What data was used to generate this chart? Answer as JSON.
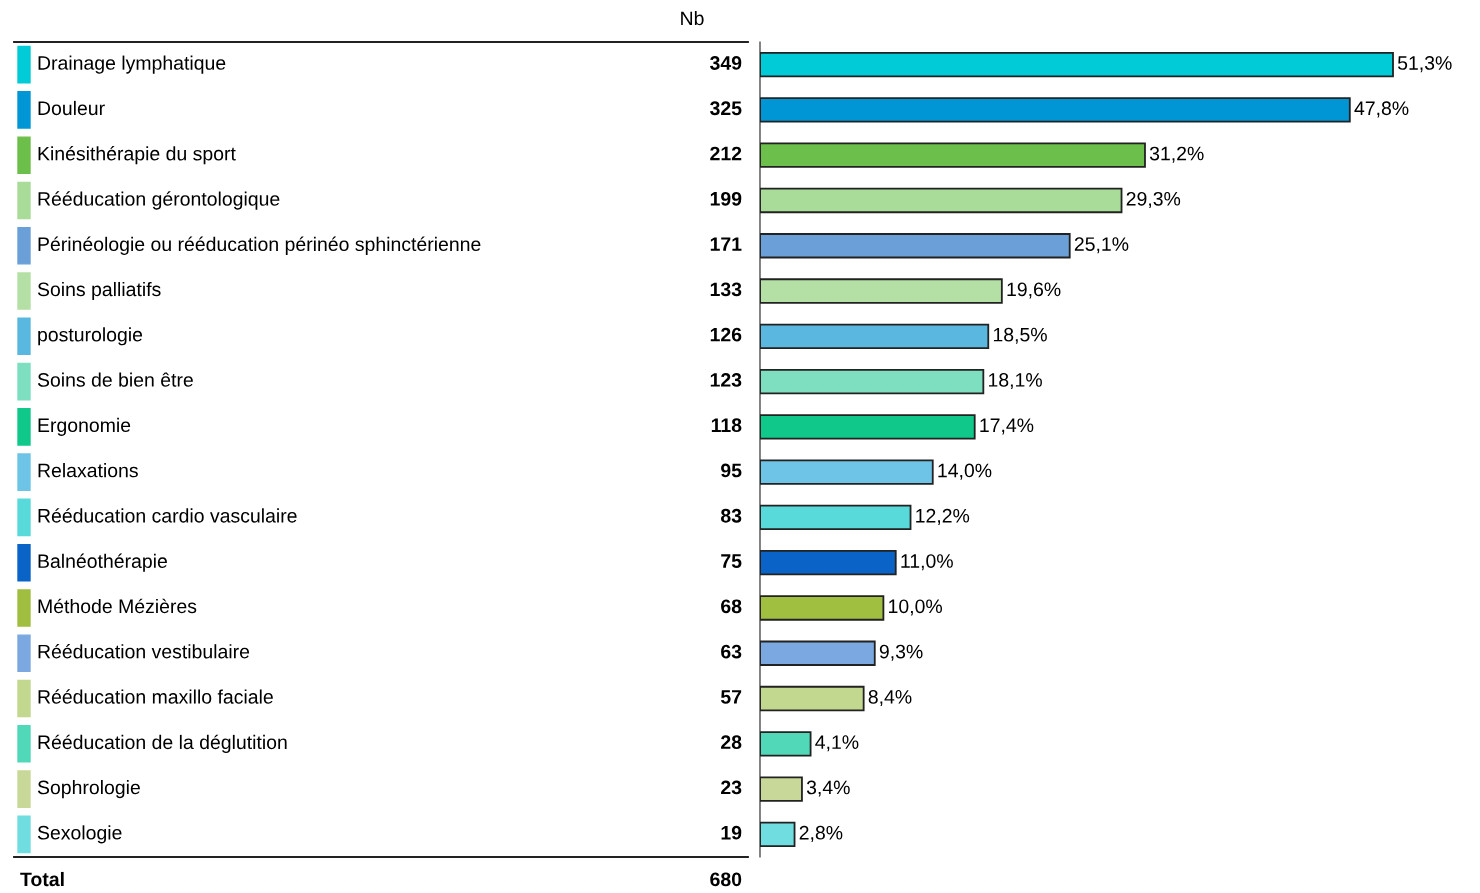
{
  "chart_data": {
    "type": "bar",
    "orientation": "horizontal",
    "categories": [
      "Drainage lymphatique",
      "Douleur",
      "Kinésithérapie du sport",
      "Rééducation gérontologique",
      "Périnéologie ou rééducation périnéo sphinctérienne",
      "Soins palliatifs",
      "posturologie",
      "Soins de bien être",
      "Ergonomie",
      "Relaxations",
      "Rééducation cardio vasculaire",
      "Balnéothérapie",
      "Méthode Mézières",
      "Rééducation vestibulaire",
      "Rééducation maxillo faciale",
      "Rééducation de la déglutition",
      "Sophrologie",
      "Sexologie"
    ],
    "values": [
      51.3,
      47.8,
      31.2,
      29.3,
      25.1,
      19.6,
      18.5,
      18.1,
      17.4,
      14.0,
      12.2,
      11.0,
      10.0,
      9.3,
      8.4,
      4.1,
      3.4,
      2.8
    ],
    "value_labels": [
      "51,3%",
      "47,8%",
      "31,2%",
      "29,3%",
      "25,1%",
      "19,6%",
      "18,5%",
      "18,1%",
      "17,4%",
      "14,0%",
      "12,2%",
      "11,0%",
      "10,0%",
      "9,3%",
      "8,4%",
      "4,1%",
      "3,4%",
      "2,8%"
    ],
    "colors": [
      "#00cbd6",
      "#0096d6",
      "#6cbf4a",
      "#a9dc98",
      "#6a9fd8",
      "#b5e0a5",
      "#5ab8e0",
      "#7ddfc0",
      "#10c88a",
      "#6ec4e6",
      "#58dada",
      "#0a64c8",
      "#a0bf40",
      "#7ba8e0",
      "#c2d88e",
      "#50d8b8",
      "#c8d898",
      "#70dde0"
    ],
    "annotations": [
      "Nb",
      "349",
      "325",
      "212",
      "199",
      "171",
      "133",
      "126",
      "123",
      "118",
      "95",
      "83",
      "75",
      "68",
      "63",
      "57",
      "28",
      "23",
      "19",
      "Total",
      "680"
    ]
  }
}
